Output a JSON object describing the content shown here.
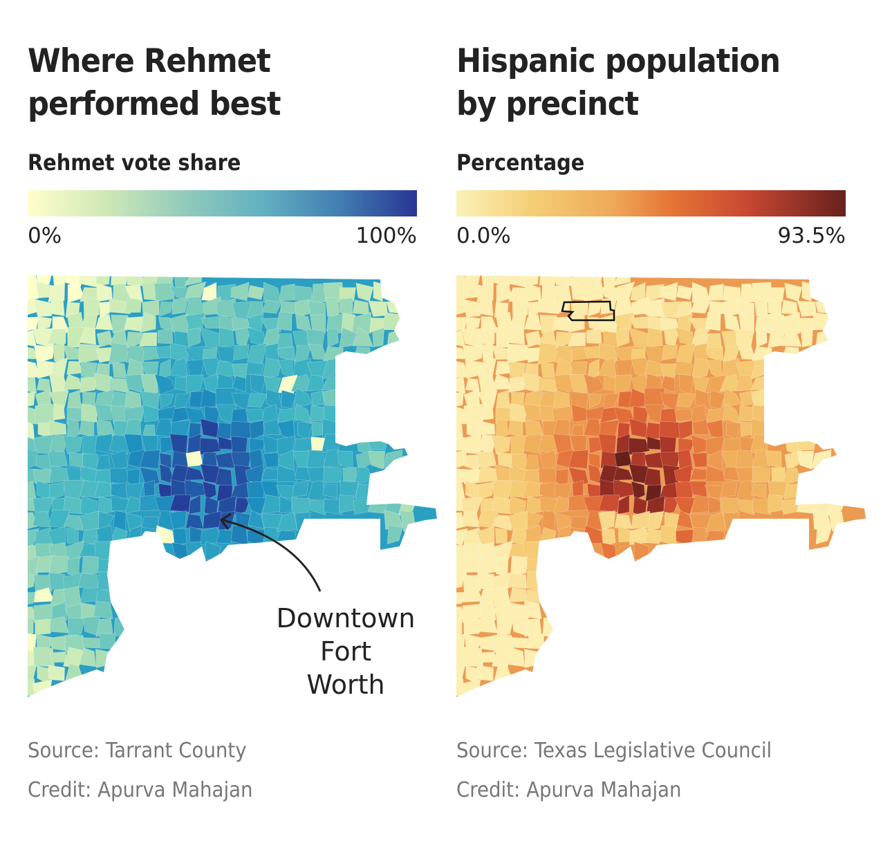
{
  "chart_data": [
    {
      "type": "choropleth",
      "title": "Where Rehmet performed best",
      "legend_title": "Rehmet vote share",
      "legend_min_label": "0%",
      "legend_max_label": "100%",
      "range": [
        0,
        100
      ],
      "colorscale": [
        "#ffffcc",
        "#c7e9b4",
        "#7fcdbb",
        "#41b6c4",
        "#1d91c0",
        "#225ea8",
        "#253494"
      ],
      "annotation": "Downtown\nFort\nWorth",
      "source": "Source: Tarrant County",
      "credit": "Credit: Apurva Mahajan"
    },
    {
      "type": "choropleth",
      "title": "Hispanic population\nby precinct",
      "legend_title": "Percentage",
      "legend_min_label": "0.0%",
      "legend_max_label": "93.5%",
      "range": [
        0.0,
        93.5
      ],
      "colorscale": [
        "#fdf3b9",
        "#f6cf78",
        "#f0ae5a",
        "#e4703a",
        "#c9472f",
        "#9b2f25",
        "#64201c"
      ],
      "highlight_outline": "selected precinct outlined in black",
      "source": "Source: Texas Legislative Council",
      "credit": "Credit: Apurva Mahajan"
    }
  ],
  "left": {
    "title": "Where Rehmet\nperformed best",
    "subtitle": "Rehmet vote share",
    "min": "0%",
    "max": "100%",
    "annotation": "Downtown\nFort\nWorth",
    "source": "Source: Tarrant County",
    "credit": "Credit: Apurva Mahajan"
  },
  "right": {
    "title": "Hispanic population\nby precinct",
    "subtitle": "Percentage",
    "min": "0.0%",
    "max": "93.5%",
    "source": "Source: Texas Legislative Council",
    "credit": "Credit: Apurva Mahajan"
  }
}
